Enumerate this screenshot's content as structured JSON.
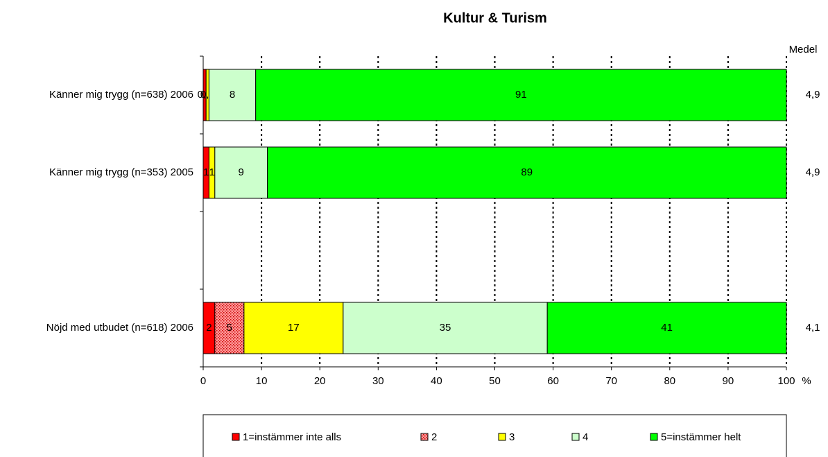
{
  "chart_data": {
    "type": "stacked_bar_horizontal",
    "title": "Kultur & Turism",
    "categories": [
      "Känner mig trygg (n=638) 2006",
      "Känner mig trygg (n=353) 2005",
      null,
      "Nöjd med utbudet (n=618) 2006"
    ],
    "series": [
      {
        "name": "1=instämmer inte alls",
        "color": "#ff0000",
        "values": [
          0.5,
          1,
          null,
          2
        ],
        "value_labels": [
          "0,5",
          "1",
          null,
          "2"
        ]
      },
      {
        "name": "2",
        "color": "#ff9999",
        "pattern": true,
        "values": [
          0,
          0,
          null,
          5
        ],
        "value_labels": [
          "0",
          "0",
          null,
          "5"
        ]
      },
      {
        "name": "3",
        "color": "#ffff00",
        "values": [
          0.5,
          1,
          null,
          17
        ],
        "value_labels": [
          "0,5",
          "1",
          null,
          "17"
        ]
      },
      {
        "name": "4",
        "color": "#ccffcc",
        "values": [
          8,
          9,
          null,
          35
        ],
        "value_labels": [
          "8",
          "9",
          null,
          "35"
        ]
      },
      {
        "name": "5=instämmer helt",
        "color": "#00ff00",
        "values": [
          91,
          89,
          null,
          41
        ],
        "value_labels": [
          "91",
          "89",
          null,
          "41"
        ]
      }
    ],
    "xlim": [
      0,
      100
    ],
    "xticks": [
      0,
      10,
      20,
      30,
      40,
      50,
      60,
      70,
      80,
      90,
      100
    ],
    "x_unit": "%",
    "grid": true,
    "medel_header": "Medel",
    "medel": [
      "4,9",
      "4,9",
      null,
      "4,1"
    ],
    "legend": "bottom"
  }
}
